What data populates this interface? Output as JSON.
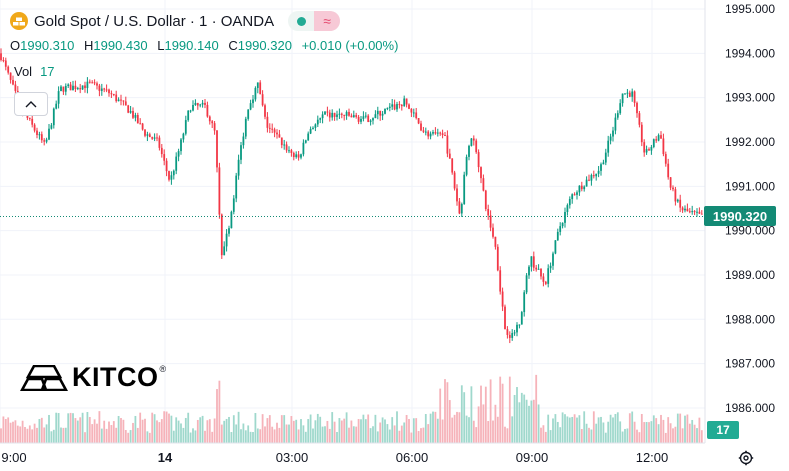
{
  "header": {
    "title": "Gold Spot / U.S. Dollar · 1 · OANDA",
    "symbol_icon": "gold-bars-icon",
    "live_icon": "dot-icon",
    "wave_icon": "wave-icon",
    "wave_glyph": "≈"
  },
  "ohlc": {
    "o_label": "O",
    "o": "1990.310",
    "h_label": "H",
    "h": "1990.430",
    "l_label": "L",
    "l": "1990.140",
    "c_label": "C",
    "c": "1990.320",
    "change": "+0.010 (+0.00%)"
  },
  "volume_legend": {
    "label": "Vol",
    "value": "17"
  },
  "logo": {
    "text": "KITCO",
    "reg": "®"
  },
  "price_tag": "1990.320",
  "volume_tag": "17",
  "colors": {
    "up": "#089981",
    "down": "#f23645",
    "up_volume": "#9fd8cc",
    "down_volume": "#f6b2b9",
    "last_price": "#138a75"
  },
  "chart_data": {
    "type": "candlestick",
    "symbol": "Gold Spot / U.S. Dollar",
    "interval": "1",
    "source": "OANDA",
    "y_ticks": [
      "1995.000",
      "1994.000",
      "1993.000",
      "1992.000",
      "1991.000",
      "1990.000",
      "1989.000",
      "1988.000",
      "1987.000",
      "1986.000"
    ],
    "ylim": [
      1985.5,
      1995.2
    ],
    "x_ticks": [
      {
        "label": "9:00",
        "t": 0
      },
      {
        "label": "14",
        "t": 165
      },
      {
        "label": "03:00",
        "t": 292
      },
      {
        "label": "06:00",
        "t": 412
      },
      {
        "label": "09:00",
        "t": 532
      },
      {
        "label": "12:00",
        "t": 652
      }
    ],
    "xlim": [
      0,
      702
    ],
    "last_price": 1990.32,
    "grid": true,
    "series": [
      {
        "name": "price",
        "anchors": [
          [
            0,
            1994.0
          ],
          [
            20,
            1992.8
          ],
          [
            45,
            1991.9
          ],
          [
            60,
            1993.2
          ],
          [
            90,
            1993.3
          ],
          [
            110,
            1993.1
          ],
          [
            130,
            1992.7
          ],
          [
            145,
            1992.2
          ],
          [
            158,
            1992.0
          ],
          [
            170,
            1991.1
          ],
          [
            180,
            1991.9
          ],
          [
            190,
            1992.8
          ],
          [
            205,
            1992.8
          ],
          [
            215,
            1992.2
          ],
          [
            222,
            1989.3
          ],
          [
            232,
            1990.5
          ],
          [
            238,
            1991.5
          ],
          [
            248,
            1992.8
          ],
          [
            258,
            1993.3
          ],
          [
            266,
            1992.4
          ],
          [
            285,
            1991.9
          ],
          [
            298,
            1991.6
          ],
          [
            310,
            1992.3
          ],
          [
            325,
            1992.6
          ],
          [
            345,
            1992.6
          ],
          [
            365,
            1992.5
          ],
          [
            385,
            1992.7
          ],
          [
            405,
            1992.9
          ],
          [
            425,
            1992.2
          ],
          [
            445,
            1992.1
          ],
          [
            452,
            1991.3
          ],
          [
            460,
            1990.3
          ],
          [
            468,
            1992.0
          ],
          [
            475,
            1992.0
          ],
          [
            485,
            1990.6
          ],
          [
            495,
            1989.7
          ],
          [
            505,
            1987.8
          ],
          [
            512,
            1987.6
          ],
          [
            520,
            1988.0
          ],
          [
            530,
            1989.4
          ],
          [
            545,
            1988.8
          ],
          [
            560,
            1990.1
          ],
          [
            572,
            1990.8
          ],
          [
            585,
            1991.1
          ],
          [
            600,
            1991.4
          ],
          [
            612,
            1992.2
          ],
          [
            622,
            1993.1
          ],
          [
            632,
            1993.1
          ],
          [
            645,
            1991.7
          ],
          [
            660,
            1992.2
          ],
          [
            670,
            1991.0
          ],
          [
            680,
            1990.5
          ],
          [
            690,
            1990.4
          ],
          [
            702,
            1990.32
          ]
        ]
      }
    ]
  }
}
